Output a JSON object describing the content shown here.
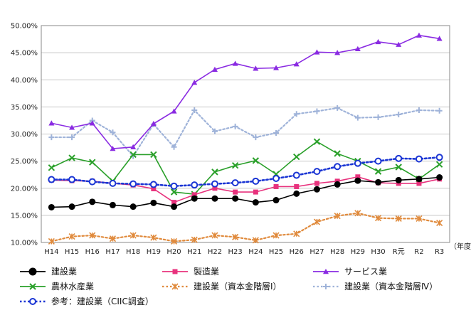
{
  "chart_data": {
    "type": "line",
    "title": "",
    "xlabel": "（年度）",
    "ylabel": "",
    "ylim": [
      10,
      50
    ],
    "yticks": [
      "10.00%",
      "15.00%",
      "20.00%",
      "25.00%",
      "30.00%",
      "35.00%",
      "40.00%",
      "45.00%",
      "50.00%"
    ],
    "yticks_values": [
      10,
      15,
      20,
      25,
      30,
      35,
      40,
      45,
      50
    ],
    "categories": [
      "H14",
      "H15",
      "H16",
      "H17",
      "H18",
      "H19",
      "H20",
      "H21",
      "H22",
      "H23",
      "H24",
      "H25",
      "H26",
      "H27",
      "H28",
      "H29",
      "H30",
      "R元",
      "R2",
      "R3"
    ],
    "series": [
      {
        "name": "建設業",
        "color": "#000000",
        "style": "solid-circle",
        "values": [
          16.5,
          16.6,
          17.5,
          16.9,
          16.6,
          17.3,
          16.6,
          18.1,
          18.1,
          18.1,
          17.4,
          17.8,
          19.0,
          19.8,
          20.7,
          21.4,
          21.1,
          21.5,
          21.7,
          22.0
        ]
      },
      {
        "name": "製造業",
        "color": "#e8327d",
        "style": "solid-square",
        "values": [
          21.5,
          21.4,
          21.3,
          20.9,
          20.6,
          19.9,
          17.4,
          18.8,
          20.0,
          19.3,
          19.3,
          20.3,
          20.3,
          20.9,
          21.3,
          22.1,
          21.0,
          20.9,
          20.9,
          21.7
        ]
      },
      {
        "name": "サービス業",
        "color": "#8a2be2",
        "style": "solid-triangle",
        "values": [
          32.0,
          31.2,
          32.0,
          27.3,
          27.6,
          31.9,
          34.2,
          39.5,
          41.9,
          43.0,
          42.1,
          42.2,
          42.9,
          45.1,
          45.0,
          45.7,
          47.0,
          46.5,
          48.2,
          47.6
        ]
      },
      {
        "name": "農林水産業",
        "color": "#2aa02a",
        "style": "solid-x",
        "values": [
          23.8,
          25.6,
          24.8,
          21.3,
          26.2,
          26.2,
          19.3,
          18.9,
          23.0,
          24.2,
          25.1,
          22.6,
          25.8,
          28.6,
          26.4,
          25.0,
          23.1,
          23.9,
          21.7,
          24.4
        ]
      },
      {
        "name": "建設業（資本金階層Ⅰ）",
        "color": "#e08a3c",
        "style": "dotted-star",
        "values": [
          10.2,
          11.1,
          11.3,
          10.7,
          11.3,
          10.9,
          10.2,
          10.5,
          11.3,
          11.0,
          10.4,
          11.3,
          11.6,
          13.8,
          14.9,
          15.4,
          14.5,
          14.4,
          14.4,
          13.6
        ]
      },
      {
        "name": "建設業（資本金階層Ⅳ）",
        "color": "#9fb3d9",
        "style": "dotted-plus",
        "values": [
          29.4,
          29.4,
          32.5,
          30.3,
          25.9,
          31.8,
          27.6,
          34.4,
          30.5,
          31.4,
          29.4,
          30.2,
          33.7,
          34.2,
          34.8,
          33.0,
          33.1,
          33.6,
          34.4,
          34.3
        ]
      },
      {
        "name": "参考：建設業（CIIC調査）",
        "color": "#1a35d4",
        "style": "dotted-circle",
        "values": [
          21.6,
          21.6,
          21.2,
          20.9,
          20.8,
          20.7,
          20.4,
          20.6,
          20.8,
          21.0,
          21.3,
          21.8,
          22.4,
          23.1,
          24.0,
          24.6,
          25.0,
          25.5,
          25.4,
          25.7
        ]
      }
    ]
  }
}
